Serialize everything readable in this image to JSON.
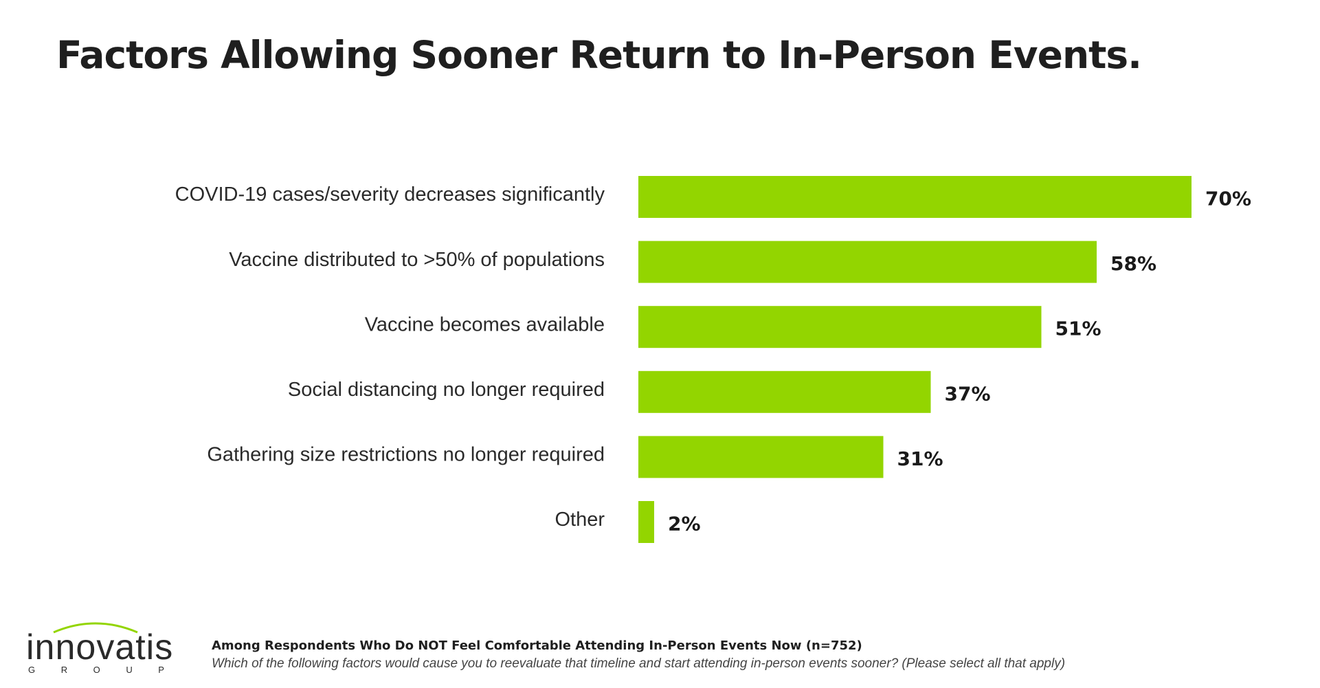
{
  "title": "Factors Allowing Sooner Return to In-Person Events.",
  "chart_data": {
    "type": "bar",
    "orientation": "horizontal",
    "categories": [
      "COVID-19 cases/severity decreases significantly",
      "Vaccine distributed to >50% of populations",
      "Vaccine becomes available",
      "Social distancing no longer required",
      "Gathering size restrictions no longer required",
      "Other"
    ],
    "values": [
      70,
      58,
      51,
      37,
      31,
      2
    ],
    "value_labels": [
      "70%",
      "58%",
      "51%",
      "37%",
      "31%",
      "2%"
    ],
    "bar_color": "#93d500",
    "xlim": [
      0,
      70
    ],
    "grid": false,
    "legend": "none"
  },
  "footnote": {
    "title": "Among Respondents Who Do NOT Feel Comfortable Attending In-Person Events Now (n=752)",
    "text": "Which of the following factors would cause you to reevaluate that timeline and start attending in-person events sooner? (Please select all that apply)"
  },
  "logo": {
    "word": "innovatis",
    "sub_letters": [
      "G",
      "R",
      "O",
      "U",
      "P"
    ],
    "accent_color": "#93d500"
  }
}
